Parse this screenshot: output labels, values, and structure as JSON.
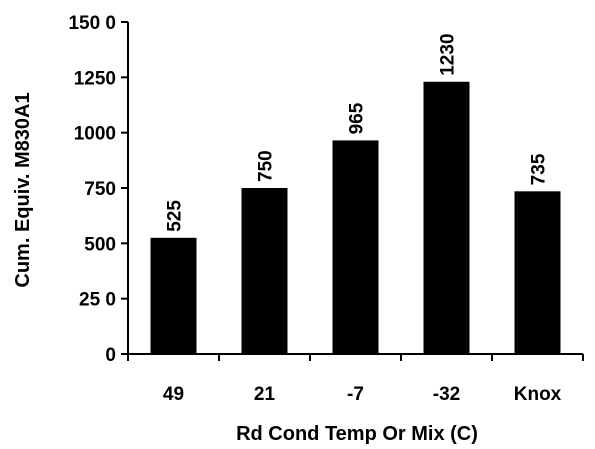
{
  "chart_data": {
    "type": "bar",
    "categories": [
      "49",
      "21",
      "-7",
      "-32",
      "Knox"
    ],
    "values": [
      525,
      750,
      965,
      1230,
      735
    ],
    "data_labels": [
      "525",
      "750",
      "965",
      "1230",
      "735"
    ],
    "y_ticks": [
      0,
      250,
      500,
      750,
      1000,
      1250,
      1500
    ],
    "y_tick_labels": [
      "0",
      "25 0",
      "500",
      "750",
      "1000",
      "1250",
      "150 0"
    ],
    "ylim": [
      0,
      1500
    ],
    "xlabel": "Rd Cond Temp Or Mix (C)",
    "ylabel": "Cum. Equiv. M830A1",
    "title": "",
    "grid": false,
    "bar_color": "#000000"
  }
}
